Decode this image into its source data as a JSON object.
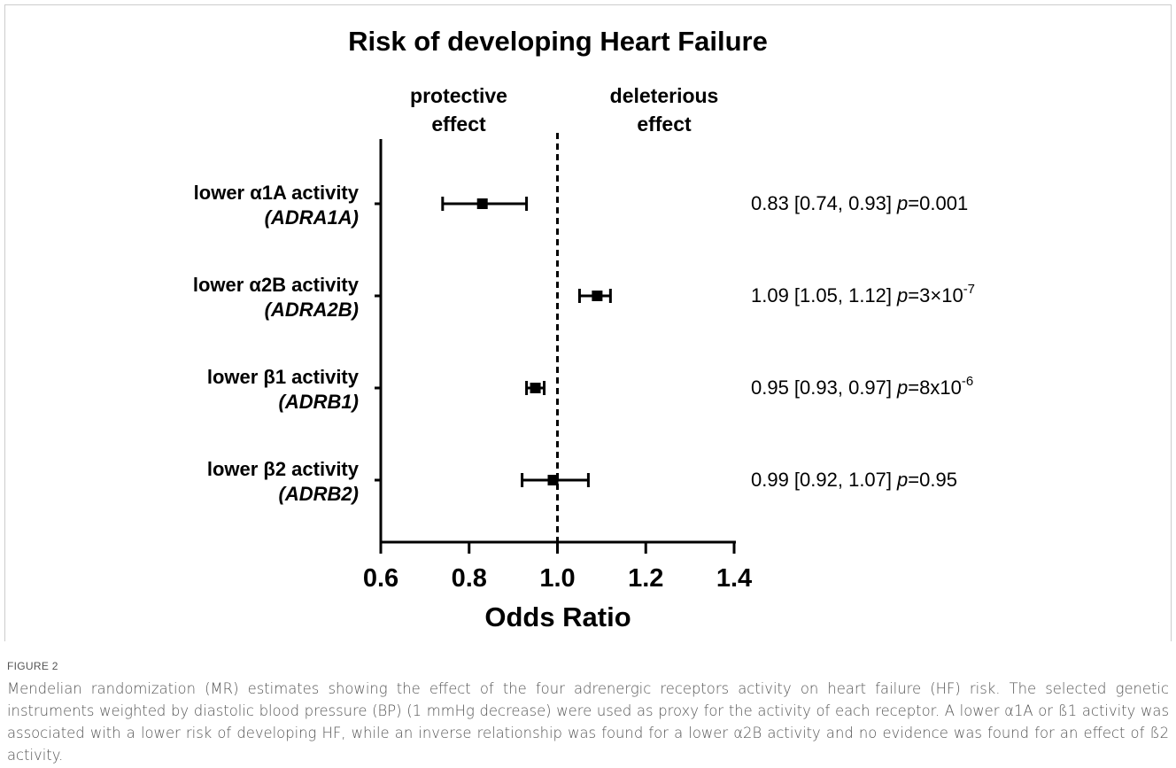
{
  "chart_data": {
    "type": "forest",
    "title": "Risk of developing Heart Failure",
    "left_annotation": [
      "protective",
      "effect"
    ],
    "right_annotation": [
      "deleterious",
      "effect"
    ],
    "categories": [
      "lower α1A activity",
      "lower α2B activity",
      "lower β1 activity",
      "lower β2 activity"
    ],
    "genes": [
      "(ADRA1A)",
      "(ADRA2B)",
      "(ADRB1)",
      "(ADRB2)"
    ],
    "values": [
      0.83,
      1.09,
      0.95,
      0.99
    ],
    "lower": [
      0.74,
      1.05,
      0.93,
      0.92
    ],
    "upper": [
      0.93,
      1.12,
      0.97,
      1.07
    ],
    "value_labels": [
      "0.83 [0.74, 0.93]",
      "1.09 [1.05, 1.12]",
      "0.95 [0.93, 0.97]",
      "0.99 [0.92, 1.07]"
    ],
    "p_symbol": "p",
    "p_values": [
      "=0.001",
      "=3×10",
      "=8x10",
      "=0.95"
    ],
    "p_exponents": [
      null,
      "-7",
      "-6",
      null
    ],
    "color": "#000000",
    "reference_line": 1,
    "xlim": [
      0.6,
      1.4
    ],
    "xticks": [
      0.6,
      0.8,
      {
        "value": 1,
        "label": "1.0"
      },
      1.2,
      1.4
    ],
    "x_label": "Odds Ratio"
  },
  "figure_label": "FIGURE 2",
  "caption": "Mendelian randomization (MR) estimates showing the effect of the four adrenergic receptors activity on heart failure (HF) risk. The selected genetic instruments weighted by diastolic blood pressure (BP) (1 mmHg decrease) were used as proxy for the activity of each receptor. A lower α1A or ß1 activity was associated with a lower risk of developing HF, while an inverse relationship was found for a lower α2B activity and no evidence was found for an effect of ß2 activity."
}
